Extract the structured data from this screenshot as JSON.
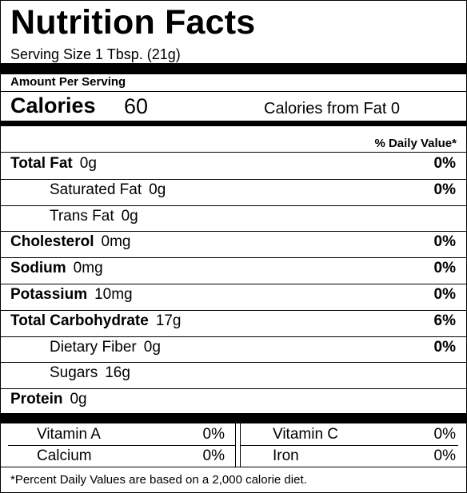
{
  "title": "Nutrition Facts",
  "serving_size": "Serving Size 1 Tbsp. (21g)",
  "amount_per_serving": "Amount Per Serving",
  "calories": {
    "label": "Calories",
    "value": "60",
    "from_fat": "Calories from Fat 0"
  },
  "daily_value_header": "% Daily Value*",
  "nutrients": [
    {
      "name": "Total Fat",
      "amount": "0g",
      "percent": "0%",
      "bold": true
    },
    {
      "name": "Saturated Fat",
      "amount": "0g",
      "percent": "0%",
      "bold": false
    },
    {
      "name": "Trans Fat",
      "amount": "0g",
      "percent": "",
      "bold": false
    },
    {
      "name": "Cholesterol",
      "amount": "0mg",
      "percent": "0%",
      "bold": true
    },
    {
      "name": "Sodium",
      "amount": "0mg",
      "percent": "0%",
      "bold": true
    },
    {
      "name": "Potassium",
      "amount": "10mg",
      "percent": "0%",
      "bold": true
    },
    {
      "name": "Total Carbohydrate",
      "amount": "17g",
      "percent": "6%",
      "bold": true
    },
    {
      "name": "Dietary Fiber",
      "amount": "0g",
      "percent": "0%",
      "bold": false
    },
    {
      "name": "Sugars",
      "amount": "16g",
      "percent": "",
      "bold": false
    },
    {
      "name": "Protein",
      "amount": "0g",
      "percent": "",
      "bold": true
    }
  ],
  "vitamins": [
    {
      "name": "Vitamin A",
      "percent": "0%"
    },
    {
      "name": "Vitamin C",
      "percent": "0%"
    },
    {
      "name": "Calcium",
      "percent": "0%"
    },
    {
      "name": "Iron",
      "percent": "0%"
    }
  ],
  "footnote": "*Percent Daily Values are based on a 2,000 calorie diet."
}
